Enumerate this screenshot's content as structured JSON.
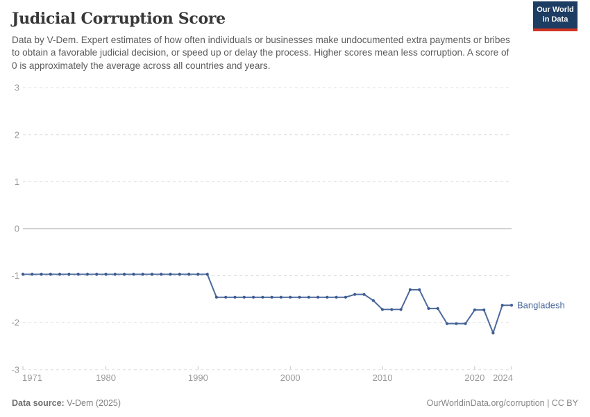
{
  "header": {
    "title": "Judicial Corruption Score",
    "subtitle": "Data by V-Dem. Expert estimates of how often individuals or businesses make undocumented extra payments or bribes to obtain a favorable judicial decision, or speed up or delay the process. Higher scores mean less corruption. A score of 0 is approximately the average across all countries and years.",
    "logo": {
      "line1": "Our World",
      "line2": "in Data",
      "bg_color": "#1d3d63",
      "stripe_color": "#d13322"
    }
  },
  "chart_data": {
    "type": "line",
    "title": "Judicial Corruption Score",
    "xlabel": "",
    "ylabel": "",
    "ylim": [
      -3,
      3
    ],
    "y_ticks": [
      3,
      2,
      1,
      0,
      -1,
      -2,
      -3
    ],
    "x_ticks": [
      1971,
      1980,
      1990,
      2000,
      2010,
      2020,
      2024
    ],
    "x_range": [
      1971,
      2024
    ],
    "grid": "horizontal-dashed",
    "legend_position": "end-of-line-label",
    "x": [
      1971,
      1972,
      1973,
      1974,
      1975,
      1976,
      1977,
      1978,
      1979,
      1980,
      1981,
      1982,
      1983,
      1984,
      1985,
      1986,
      1987,
      1988,
      1989,
      1990,
      1991,
      1992,
      1993,
      1994,
      1995,
      1996,
      1997,
      1998,
      1999,
      2000,
      2001,
      2002,
      2003,
      2004,
      2005,
      2006,
      2007,
      2008,
      2009,
      2010,
      2011,
      2012,
      2013,
      2014,
      2015,
      2016,
      2017,
      2018,
      2019,
      2020,
      2021,
      2022,
      2023,
      2024
    ],
    "series": [
      {
        "name": "Bangladesh",
        "values": [
          -0.97,
          -0.97,
          -0.97,
          -0.97,
          -0.97,
          -0.97,
          -0.97,
          -0.97,
          -0.97,
          -0.97,
          -0.97,
          -0.97,
          -0.97,
          -0.97,
          -0.97,
          -0.97,
          -0.97,
          -0.97,
          -0.97,
          -0.97,
          -0.97,
          -1.46,
          -1.46,
          -1.46,
          -1.46,
          -1.46,
          -1.46,
          -1.46,
          -1.46,
          -1.46,
          -1.46,
          -1.46,
          -1.46,
          -1.46,
          -1.46,
          -1.46,
          -1.4,
          -1.4,
          -1.53,
          -1.72,
          -1.72,
          -1.72,
          -1.3,
          -1.3,
          -1.7,
          -1.7,
          -2.02,
          -2.02,
          -2.02,
          -1.73,
          -1.73,
          -2.22,
          -1.63,
          -1.63
        ]
      }
    ],
    "colors": {
      "line": "#4c6a9c",
      "point": "#3d5c94",
      "entity_label": "#4c6a9c",
      "grid": "#dedede",
      "zero_line": "#a6a6a6",
      "axis_text": "#999999"
    }
  },
  "footer": {
    "source_label": "Data source:",
    "source_value": " V-Dem (2025)",
    "credit": "OurWorldinData.org/corruption | CC BY"
  }
}
